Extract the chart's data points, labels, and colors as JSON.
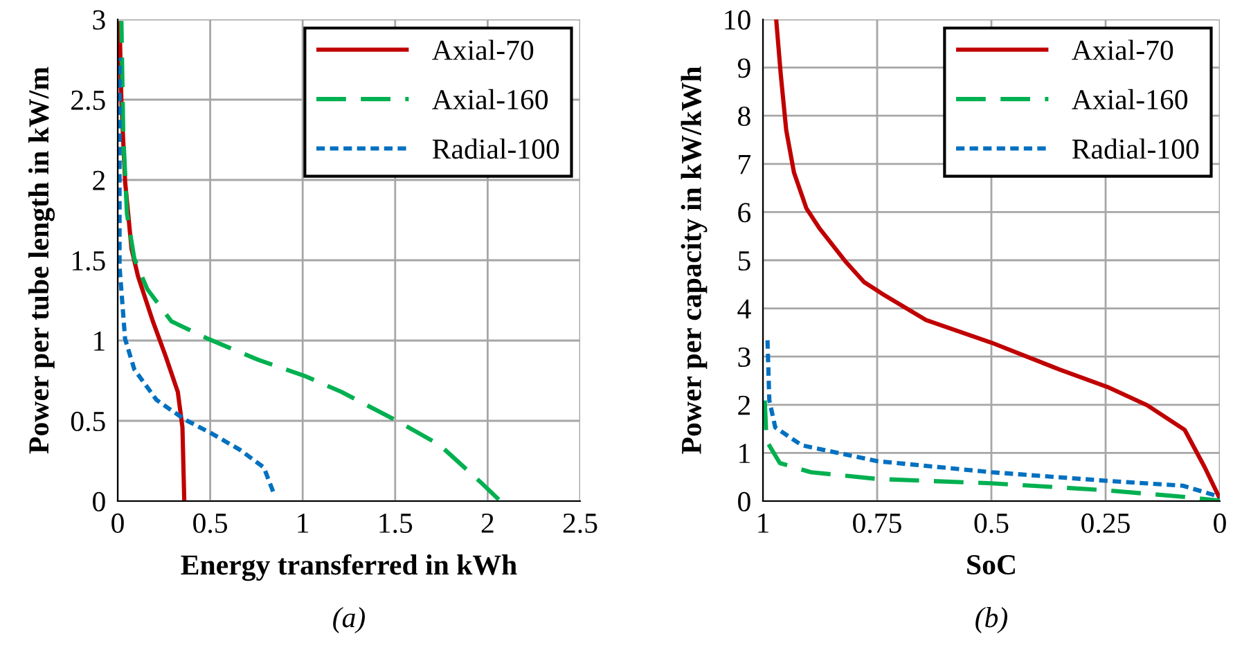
{
  "chart_data": [
    {
      "type": "line",
      "xlabel": "Energy transferred in kWh",
      "ylabel": "Power per tube length in kW/m",
      "annotations": [
        "(a)"
      ],
      "xlim": [
        0,
        2.5
      ],
      "xticks": [
        0,
        0.5,
        1,
        1.5,
        2,
        2.5
      ],
      "ylim": [
        0,
        3
      ],
      "yticks": [
        0,
        0.5,
        1,
        1.5,
        2,
        2.5,
        3
      ],
      "grid": true,
      "legend": "top right",
      "series": [
        {
          "name": "Axial-70",
          "color": "#c00000",
          "line_style": "solid",
          "x": [
            0.36,
            0.35,
            0.325,
            0.26,
            0.19,
            0.11,
            0.075,
            0.04,
            0.02,
            0.01
          ],
          "values": [
            0,
            0.46,
            0.68,
            0.9,
            1.12,
            1.4,
            1.57,
            1.99,
            2.49,
            2.99
          ]
        },
        {
          "name": "Axial-160",
          "color": "#00b050",
          "line_style": "dashed",
          "x": [
            2.06,
            1.96,
            1.74,
            1.51,
            1.21,
            1.01,
            0.76,
            0.49,
            0.29,
            0.16,
            0.09,
            0.05,
            0.03,
            0.02
          ],
          "values": [
            0.01,
            0.12,
            0.35,
            0.5,
            0.68,
            0.78,
            0.88,
            1.01,
            1.12,
            1.32,
            1.51,
            1.79,
            2.29,
            2.99
          ]
        },
        {
          "name": "Radial-100",
          "color": "#0070c0",
          "line_style": "dotted",
          "x": [
            0.84,
            0.79,
            0.66,
            0.51,
            0.36,
            0.21,
            0.09,
            0.04,
            0.01,
            0.01,
            0.01
          ],
          "values": [
            0.06,
            0.21,
            0.32,
            0.42,
            0.51,
            0.63,
            0.82,
            1.01,
            1.46,
            2.15,
            2.76
          ]
        }
      ]
    },
    {
      "type": "line",
      "xlabel": "SoC",
      "ylabel": "Power per capacity in kW/kWh",
      "annotations": [
        "(b)"
      ],
      "xlim": [
        1,
        0
      ],
      "xticks": [
        1,
        0.75,
        0.5,
        0.25,
        0
      ],
      "ylim": [
        0,
        10
      ],
      "yticks": [
        0,
        1,
        2,
        3,
        4,
        5,
        6,
        7,
        8,
        9,
        10
      ],
      "grid": true,
      "legend": "top right",
      "series": [
        {
          "name": "Axial-70",
          "color": "#c00000",
          "line_style": "solid",
          "x": [
            0.971,
            0.961,
            0.949,
            0.932,
            0.905,
            0.876,
            0.818,
            0.779,
            0.74,
            0.643,
            0.5,
            0.353,
            0.246,
            0.159,
            0.077,
            0.033,
            0
          ],
          "values": [
            10,
            8.86,
            7.7,
            6.82,
            6.08,
            5.66,
            4.96,
            4.55,
            4.31,
            3.76,
            3.29,
            2.74,
            2.37,
            1.99,
            1.48,
            0.7,
            0.05
          ]
        },
        {
          "name": "Axial-160",
          "color": "#00b050",
          "line_style": "dashed",
          "x": [
            0.996,
            0.992,
            0.963,
            0.895,
            0.75,
            0.5,
            0.256,
            0.081,
            0
          ],
          "values": [
            2.09,
            1.25,
            0.79,
            0.6,
            0.46,
            0.37,
            0.23,
            0.09,
            0.01
          ]
        },
        {
          "name": "Radial-100",
          "color": "#0070c0",
          "line_style": "dotted",
          "x": [
            0.99,
            0.986,
            0.973,
            0.915,
            0.75,
            0.5,
            0.246,
            0.081,
            0
          ],
          "values": [
            3.34,
            2.09,
            1.53,
            1.16,
            0.83,
            0.6,
            0.42,
            0.32,
            0.09
          ]
        }
      ]
    }
  ]
}
